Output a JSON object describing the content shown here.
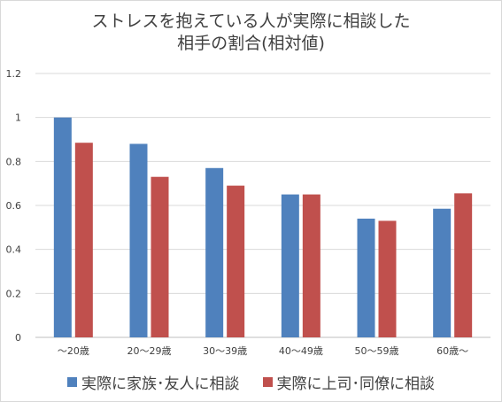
{
  "chart_data": {
    "type": "bar",
    "title_line1": "ストレスを抱えている人が実際に相談した",
    "title_line2": "相手の割合(相対値)",
    "categories": [
      "～20歳",
      "20～29歳",
      "30～39歳",
      "40～49歳",
      "50～59歳",
      "60歳～"
    ],
    "series": [
      {
        "name": "実際に家族･友人に相談",
        "color": "#4f81bd",
        "values": [
          1.0,
          0.88,
          0.77,
          0.65,
          0.54,
          0.585
        ]
      },
      {
        "name": "実際に上司･同僚に相談",
        "color": "#c0504d",
        "values": [
          0.885,
          0.73,
          0.69,
          0.65,
          0.53,
          0.655
        ]
      }
    ],
    "yticks": [
      "0",
      "0.2",
      "0.4",
      "0.6",
      "0.8",
      "1",
      "1.2"
    ],
    "ylim": [
      0,
      1.2
    ],
    "grid": true,
    "legend_position": "bottom"
  }
}
